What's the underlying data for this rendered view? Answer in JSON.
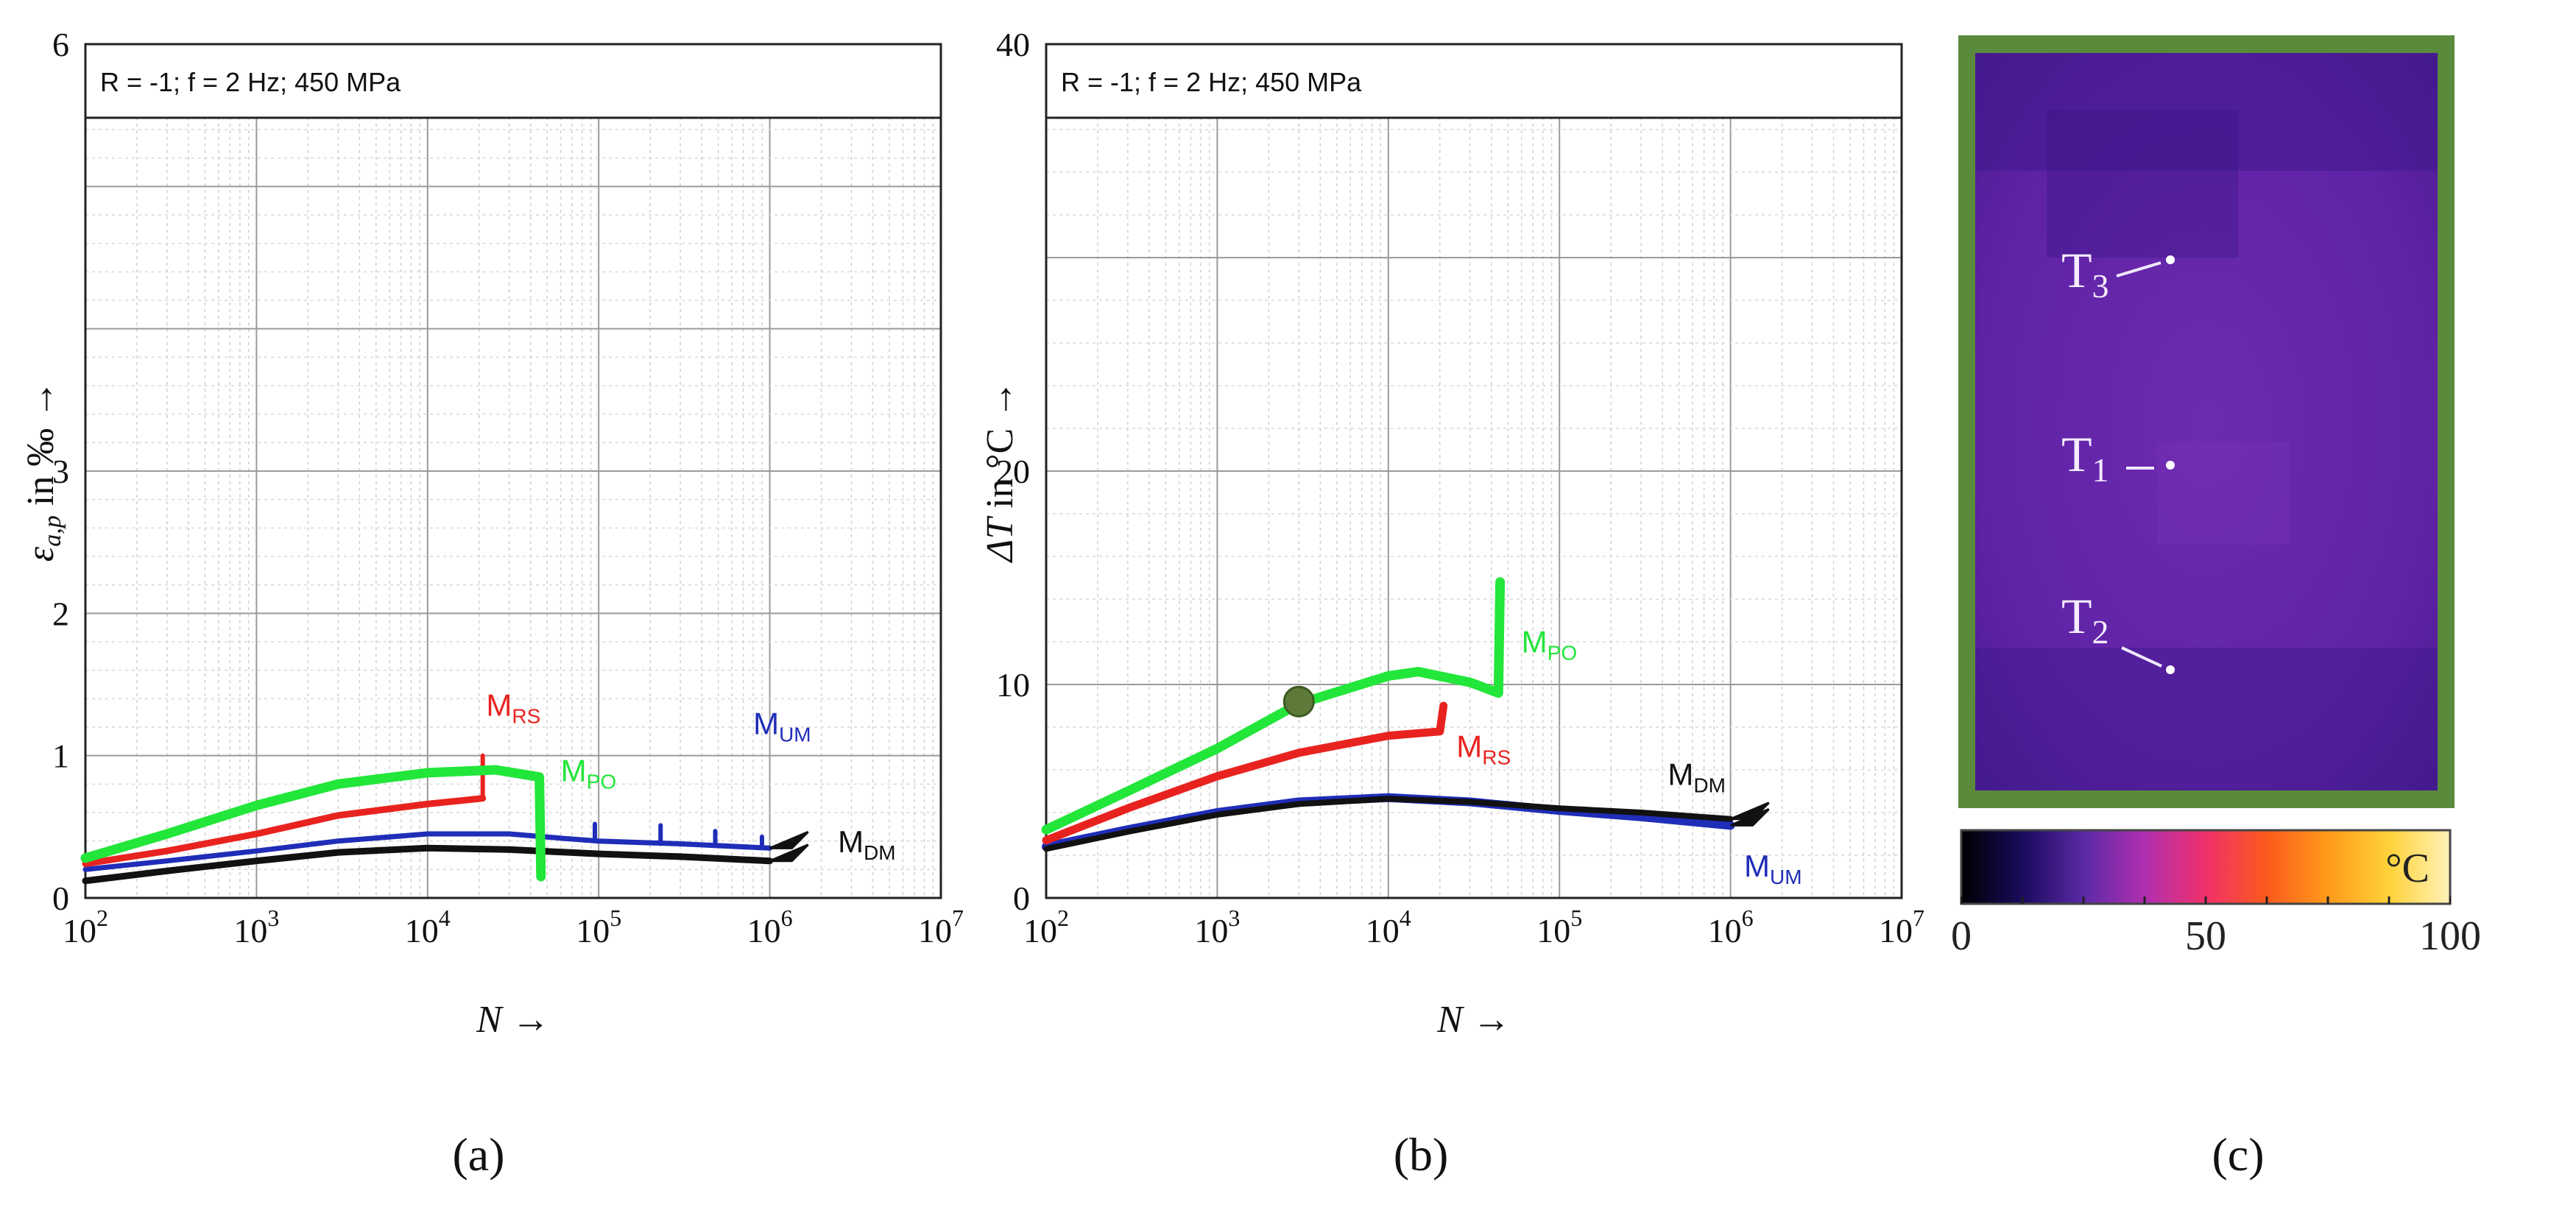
{
  "chart_data": [
    {
      "panel": "(a)",
      "type": "line",
      "title": "R = -1; f = 2 Hz; 450 MPa",
      "xlabel": "N →",
      "ylabel": "ε_a,p in ‰ →",
      "ylabel_main": "ε",
      "ylabel_sub": "a,p",
      "ylabel_rest": " in ‰ →",
      "xscale": "log",
      "xlim": [
        100,
        10000000
      ],
      "ylim": [
        0,
        6
      ],
      "xticks": [
        {
          "value": 100,
          "base": "10",
          "exp": "2"
        },
        {
          "value": 1000,
          "base": "10",
          "exp": "3"
        },
        {
          "value": 10000,
          "base": "10",
          "exp": "4"
        },
        {
          "value": 100000,
          "base": "10",
          "exp": "5"
        },
        {
          "value": 1000000,
          "base": "10",
          "exp": "6"
        },
        {
          "value": 10000000,
          "base": "10",
          "exp": "7"
        }
      ],
      "yticks": [
        0,
        1,
        2,
        3,
        4,
        5,
        6
      ],
      "ytick_labels": [
        "0",
        "1",
        "2",
        "3",
        "",
        "",
        "6"
      ],
      "series": [
        {
          "name": "M_UM",
          "main": "M",
          "sub": "UM",
          "color": "#1f2db8",
          "width": 7,
          "points": [
            [
              100,
              0.2
            ],
            [
              300,
              0.26
            ],
            [
              1000,
              0.33
            ],
            [
              3000,
              0.4
            ],
            [
              10000,
              0.45
            ],
            [
              30000,
              0.45
            ],
            [
              60000,
              0.42
            ],
            [
              100000,
              0.4
            ],
            [
              300000,
              0.38
            ],
            [
              1000000,
              0.35
            ]
          ],
          "spikes": [
            [
              95000,
              0.52
            ],
            [
              230000,
              0.51
            ],
            [
              480000,
              0.47
            ],
            [
              900000,
              0.43
            ]
          ],
          "end_marker": true
        },
        {
          "name": "M_DM",
          "main": "M",
          "sub": "DM",
          "color": "#111111",
          "width": 9,
          "points": [
            [
              100,
              0.12
            ],
            [
              300,
              0.19
            ],
            [
              1000,
              0.26
            ],
            [
              3000,
              0.32
            ],
            [
              10000,
              0.35
            ],
            [
              30000,
              0.34
            ],
            [
              100000,
              0.31
            ],
            [
              300000,
              0.29
            ],
            [
              1000000,
              0.26
            ]
          ],
          "end_marker": true
        },
        {
          "name": "M_RS",
          "main": "M",
          "sub": "RS",
          "color": "#e8231f",
          "width": 9,
          "points": [
            [
              100,
              0.24
            ],
            [
              300,
              0.33
            ],
            [
              1000,
              0.45
            ],
            [
              3000,
              0.58
            ],
            [
              10000,
              0.66
            ],
            [
              21000,
              0.7
            ]
          ],
          "spikes": [
            [
              21000,
              1.0
            ]
          ]
        },
        {
          "name": "M_PO",
          "main": "M",
          "sub": "PO",
          "color": "#22e63a",
          "width": 13,
          "points": [
            [
              100,
              0.28
            ],
            [
              300,
              0.45
            ],
            [
              1000,
              0.65
            ],
            [
              3000,
              0.8
            ],
            [
              10000,
              0.88
            ],
            [
              25000,
              0.9
            ],
            [
              45000,
              0.85
            ],
            [
              46000,
              0.15
            ]
          ]
        }
      ],
      "series_labels": [
        {
          "main": "M",
          "sub": "RS",
          "color": "#e8231f",
          "at": [
            22000,
            1.28
          ]
        },
        {
          "main": "M",
          "sub": "PO",
          "color": "#22e63a",
          "at": [
            60000,
            0.82
          ]
        },
        {
          "main": "M",
          "sub": "UM",
          "color": "#1f2db8",
          "at": [
            800000,
            1.15
          ]
        },
        {
          "main": "M",
          "sub": "DM",
          "color": "#111111",
          "at": [
            2500000,
            0.32
          ]
        }
      ]
    },
    {
      "panel": "(b)",
      "type": "line",
      "title": "R = -1; f = 2 Hz; 450 MPa",
      "xlabel": "N →",
      "ylabel": "ΔT in °C →",
      "ylabel_main": "ΔT",
      "ylabel_rest": " in °C →",
      "xscale": "log",
      "xlim": [
        100,
        10000000
      ],
      "ylim": [
        0,
        40
      ],
      "xticks": [
        {
          "value": 100,
          "base": "10",
          "exp": "2"
        },
        {
          "value": 1000,
          "base": "10",
          "exp": "3"
        },
        {
          "value": 10000,
          "base": "10",
          "exp": "4"
        },
        {
          "value": 100000,
          "base": "10",
          "exp": "5"
        },
        {
          "value": 1000000,
          "base": "10",
          "exp": "6"
        },
        {
          "value": 10000000,
          "base": "10",
          "exp": "7"
        }
      ],
      "yticks": [
        0,
        10,
        20,
        30,
        40
      ],
      "ytick_labels": [
        "0",
        "10",
        "20",
        "",
        "40"
      ],
      "series": [
        {
          "name": "M_UM",
          "main": "M",
          "sub": "UM",
          "color": "#1f2db8",
          "width": 12,
          "points": [
            [
              100,
              2.4
            ],
            [
              300,
              3.2
            ],
            [
              1000,
              4.0
            ],
            [
              3000,
              4.5
            ],
            [
              10000,
              4.7
            ],
            [
              30000,
              4.5
            ],
            [
              100000,
              4.1
            ],
            [
              300000,
              3.8
            ],
            [
              1000000,
              3.4
            ]
          ],
          "end_marker": true
        },
        {
          "name": "M_DM",
          "main": "M",
          "sub": "DM",
          "color": "#111111",
          "width": 8,
          "points": [
            [
              100,
              2.3
            ],
            [
              300,
              3.1
            ],
            [
              1000,
              3.9
            ],
            [
              3000,
              4.4
            ],
            [
              10000,
              4.65
            ],
            [
              30000,
              4.5
            ],
            [
              100000,
              4.2
            ],
            [
              300000,
              4.0
            ],
            [
              1000000,
              3.7
            ]
          ],
          "end_marker": true
        },
        {
          "name": "M_RS",
          "main": "M",
          "sub": "RS",
          "color": "#e8231f",
          "width": 11,
          "points": [
            [
              100,
              2.7
            ],
            [
              300,
              4.2
            ],
            [
              1000,
              5.7
            ],
            [
              3000,
              6.8
            ],
            [
              10000,
              7.6
            ],
            [
              20000,
              7.8
            ],
            [
              21000,
              9.0
            ]
          ]
        },
        {
          "name": "M_PO",
          "main": "M",
          "sub": "PO",
          "color": "#22e63a",
          "width": 13,
          "points": [
            [
              100,
              3.2
            ],
            [
              300,
              5.0
            ],
            [
              1000,
              7.0
            ],
            [
              3000,
              9.1
            ],
            [
              10000,
              10.4
            ],
            [
              15000,
              10.6
            ],
            [
              30000,
              10.1
            ],
            [
              44000,
              9.6
            ],
            [
              45000,
              14.8
            ]
          ]
        }
      ],
      "marker_point": {
        "x": 3000,
        "y": 9.2,
        "color": "#5d7a3a"
      },
      "series_labels": [
        {
          "main": "M",
          "sub": "PO",
          "color": "#22e63a",
          "at": [
            60000,
            11.5
          ]
        },
        {
          "main": "M",
          "sub": "RS",
          "color": "#e8231f",
          "at": [
            25000,
            6.6
          ]
        },
        {
          "main": "M",
          "sub": "DM",
          "color": "#111111",
          "at": [
            430000,
            5.3
          ]
        },
        {
          "main": "M",
          "sub": "UM",
          "color": "#1f2db8",
          "at": [
            1200000,
            1.0
          ]
        }
      ]
    },
    {
      "panel": "(c)",
      "type": "heatmap",
      "frame_color": "#5a8a3c",
      "image_color": "#6224a8",
      "points": [
        {
          "main": "T",
          "sub": "3"
        },
        {
          "main": "T",
          "sub": "1"
        },
        {
          "main": "T",
          "sub": "2"
        }
      ],
      "colorbar": {
        "unit": "°C",
        "min": 0,
        "max": 100,
        "tick_values": [
          0,
          50,
          100
        ],
        "tick_labels": [
          "0",
          "50",
          "100"
        ],
        "stops": [
          "#000000",
          "#1a0a5c",
          "#5b2aa6",
          "#b02fb0",
          "#f0306a",
          "#fb5a1c",
          "#ff9a1a",
          "#ffd23a",
          "#fff2b8"
        ]
      }
    }
  ]
}
